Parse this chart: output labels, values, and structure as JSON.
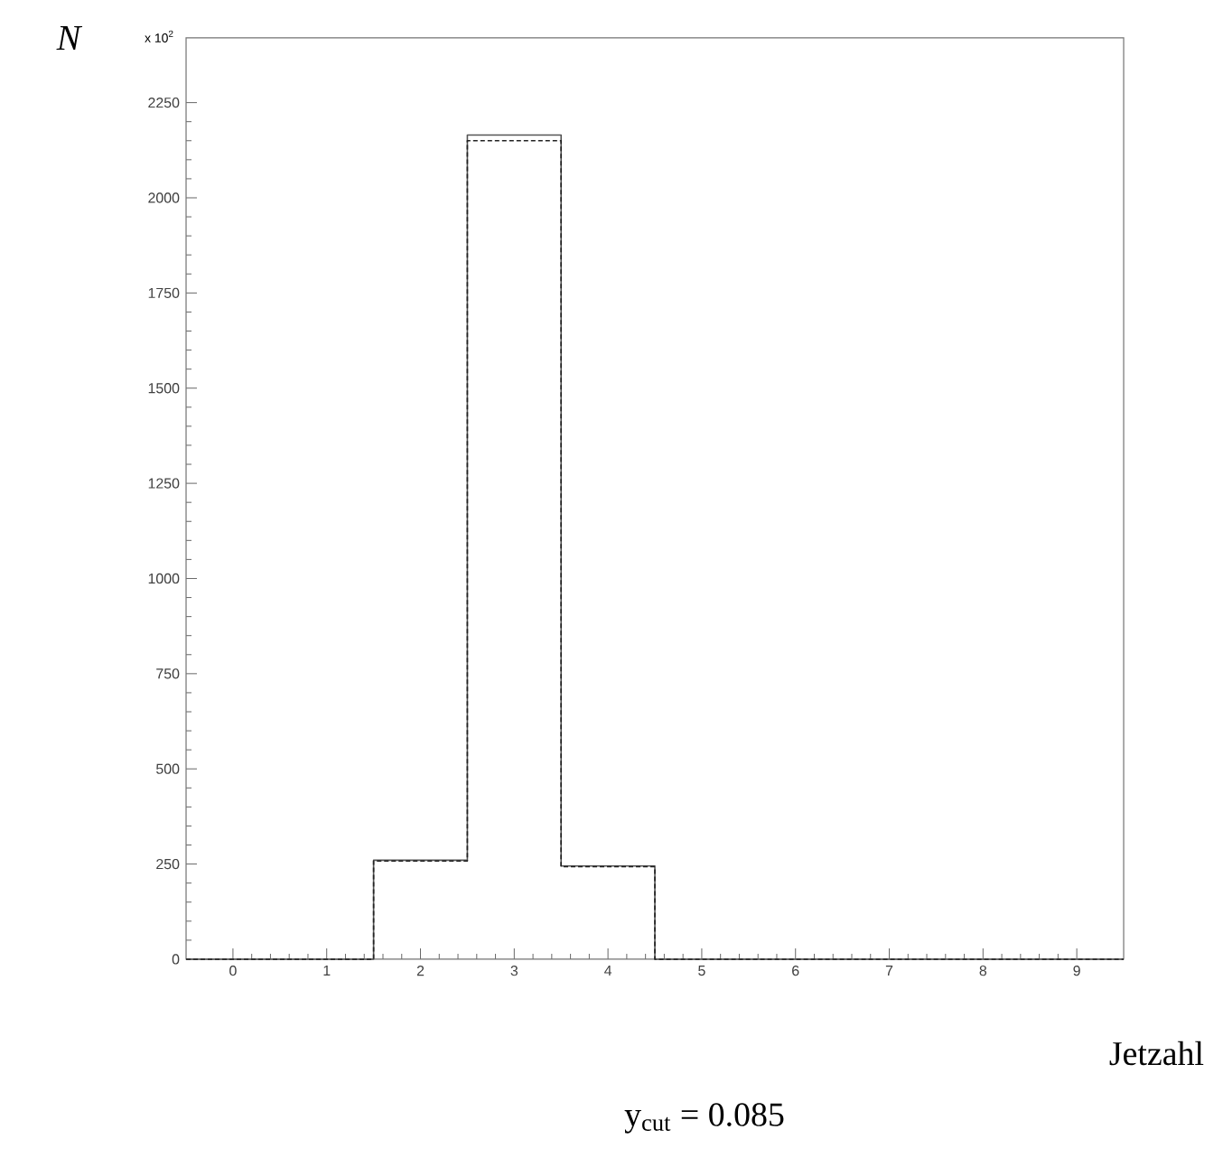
{
  "chart_data": {
    "type": "histogram",
    "ylabel": "N",
    "xlabel": "Jetzahl",
    "annotations": [
      "x 10$^{2}$",
      "y$_{cut}$ = 0.085"
    ],
    "bins": [
      -0.5,
      0.5,
      1.5,
      2.5,
      3.5,
      4.5,
      5.5,
      6.5,
      7.5,
      8.5,
      9.5
    ],
    "series": [
      {
        "color": "#555555",
        "line_style": "solid",
        "values": [
          0,
          0,
          260,
          2165,
          245,
          0,
          0,
          0,
          0,
          0
        ]
      },
      {
        "color": "#222222",
        "line_style": "dashed",
        "values": [
          0,
          0,
          258,
          2150,
          243,
          0,
          0,
          0,
          0,
          0
        ]
      }
    ],
    "xlim": [
      -0.5,
      9.5
    ],
    "ylim": [
      0,
      2420
    ],
    "xticks": [
      0,
      1,
      2,
      3,
      4,
      5,
      6,
      7,
      8,
      9
    ],
    "yticks": [
      0,
      250,
      500,
      750,
      1000,
      1250,
      1500,
      1750,
      2000,
      2250
    ]
  }
}
